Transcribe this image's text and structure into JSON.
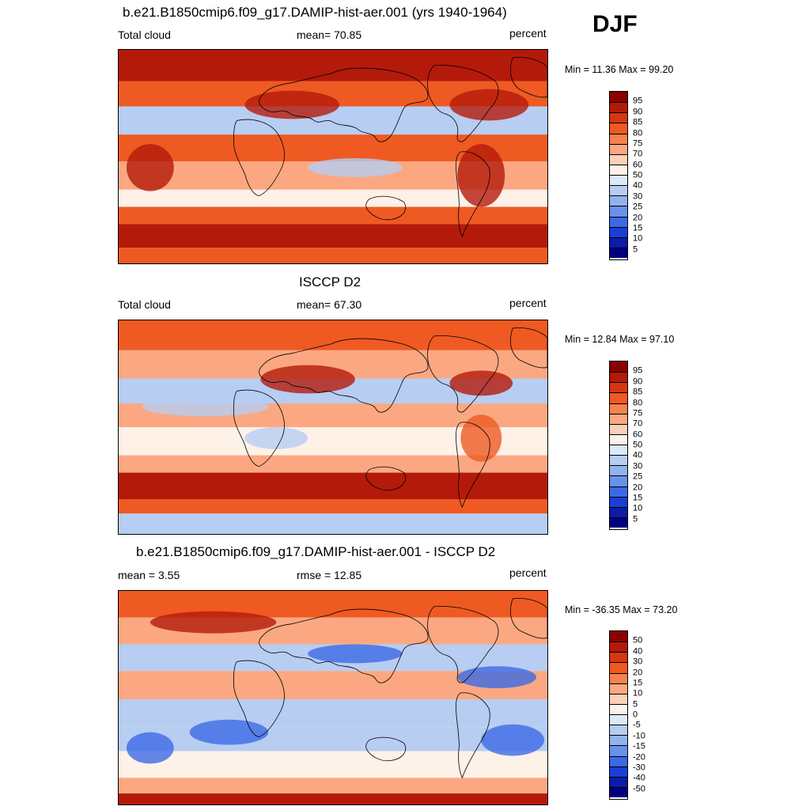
{
  "season": "DJF",
  "panels": [
    {
      "title": "b.e21.B1850cmip6.f09_g17.DAMIP-hist-aer.001 (yrs 1940-1964)",
      "left_label": "Total cloud",
      "center_label": "mean=  70.85",
      "units": "percent",
      "minmax": "Min =  11.36 Max =  99.20",
      "colorbar_labels": [
        "95",
        "90",
        "85",
        "80",
        "75",
        "70",
        "60",
        "50",
        "40",
        "30",
        "25",
        "20",
        "15",
        "10",
        "5"
      ]
    },
    {
      "title": "ISCCP D2",
      "left_label": "Total cloud",
      "center_label": "mean=  67.30",
      "units": "percent",
      "minmax": "Min =  12.84 Max =  97.10",
      "colorbar_labels": [
        "95",
        "90",
        "85",
        "80",
        "75",
        "70",
        "60",
        "50",
        "40",
        "30",
        "25",
        "20",
        "15",
        "10",
        "5"
      ]
    },
    {
      "title": "b.e21.B1850cmip6.f09_g17.DAMIP-hist-aer.001 - ISCCP D2",
      "left_label": "mean =   3.55",
      "center_label": "rmse =  12.85",
      "units": "percent",
      "minmax": "Min = -36.35 Max =  73.20",
      "colorbar_labels": [
        "50",
        "40",
        "30",
        "20",
        "15",
        "10",
        "5",
        "0",
        "-5",
        "-10",
        "-15",
        "-20",
        "-30",
        "-40",
        "-50"
      ]
    }
  ],
  "colorbar_colors": [
    "#8b0000",
    "#b41a0a",
    "#d63612",
    "#ee5a22",
    "#f6834d",
    "#fba882",
    "#fcd0b8",
    "#fdf1e8",
    "#dce9f9",
    "#b7cdf2",
    "#93b3ee",
    "#6a92ea",
    "#3c6ae6",
    "#1a3fd6",
    "#0c1ca8",
    "#000080"
  ],
  "map_colors": {
    "high": "#b41a0a",
    "mid": "#ee5a22",
    "low": "#fba882",
    "neutral": "#fdf1e8",
    "cool": "#b7cdf2",
    "cold": "#3c6ae6"
  }
}
